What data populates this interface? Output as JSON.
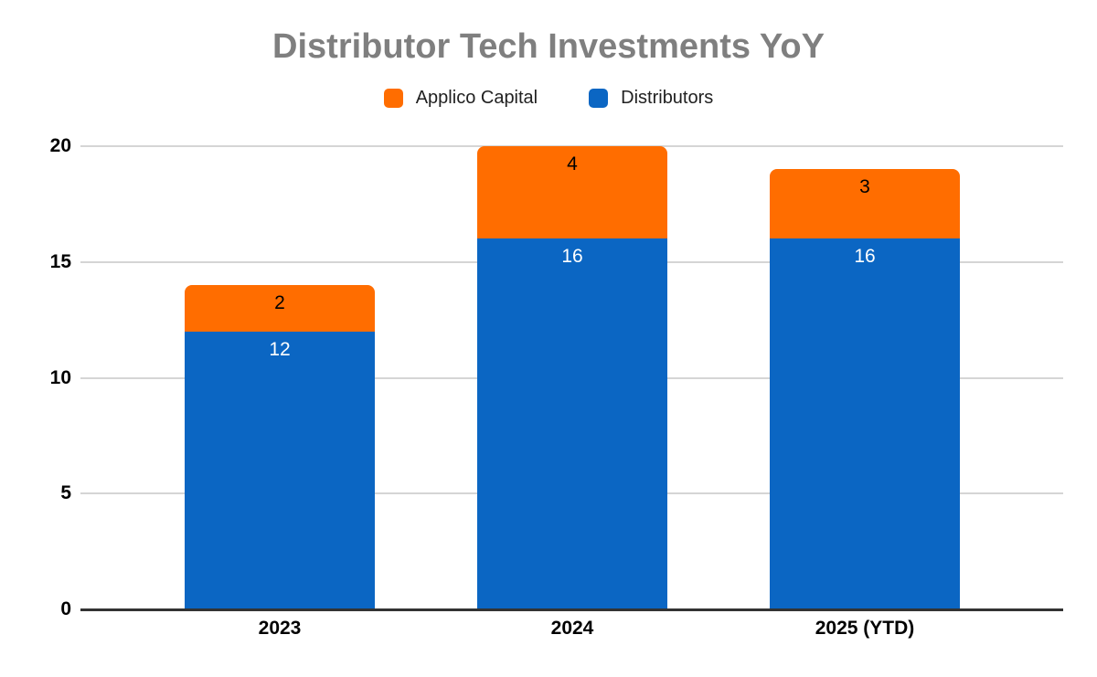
{
  "chart_data": {
    "type": "bar",
    "variant": "stacked-column",
    "title": "Distributor Tech Investments YoY",
    "categories": [
      "2023",
      "2024",
      "2025 (YTD)"
    ],
    "series": [
      {
        "name": "Applico Capital",
        "color": "#ff6d00",
        "values": [
          2,
          4,
          3
        ],
        "label_color": "#000000"
      },
      {
        "name": "Distributors",
        "color": "#0b66c3",
        "values": [
          12,
          16,
          16
        ],
        "label_color": "#ffffff"
      }
    ],
    "stack_order_bottom_to_top": [
      "Distributors",
      "Applico Capital"
    ],
    "totals": [
      14,
      20,
      19
    ],
    "xlabel": "",
    "ylabel": "",
    "ylim": [
      0,
      20
    ],
    "y_ticks": [
      "0",
      "5",
      "10",
      "15",
      "20"
    ],
    "grid": "horizontal",
    "legend_position": "top"
  },
  "colors": {
    "title_text": "#7f7f7f",
    "axis_text": "#000000",
    "legend_text": "#212121",
    "gridline": "#d5d5d5",
    "baseline": "#333333",
    "background": "#ffffff"
  }
}
